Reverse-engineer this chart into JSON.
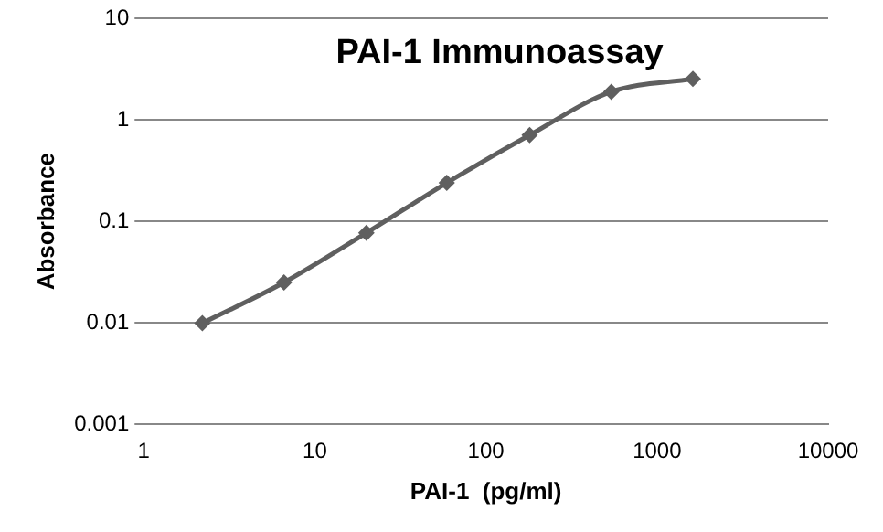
{
  "chart_data": {
    "type": "line",
    "title": "PAI-1 Immunoassay",
    "xlabel": "PAI-1  (pg/ml)",
    "ylabel": "Absorbance",
    "x": [
      2.2,
      6.6,
      20,
      59,
      180,
      540,
      1620
    ],
    "series": [
      {
        "color": "#5f5f5f",
        "values": [
          0.0099,
          0.025,
          0.077,
          0.24,
          0.71,
          1.9,
          2.55
        ]
      }
    ],
    "log": "xy",
    "xlim": [
      1,
      10000
    ],
    "xticks": [
      1,
      10,
      100,
      1000,
      10000
    ],
    "ylim": [
      0.001,
      10
    ],
    "yticks": [
      0.001,
      0.01,
      0.1,
      1,
      10
    ],
    "grid": "y",
    "legend": false,
    "marker": "diamond",
    "line_style": "solid"
  }
}
